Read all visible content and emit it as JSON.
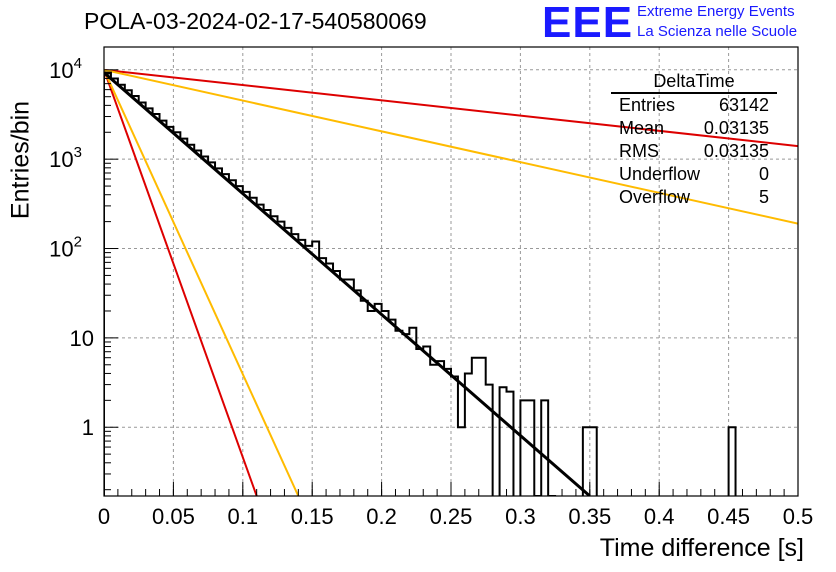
{
  "title": "POLA-03-2024-02-17-540580069",
  "logo": {
    "mark": "EEE",
    "line1": "Extreme Energy Events",
    "line2": "La Scienza nelle Scuole",
    "color": "#1a1aff"
  },
  "stats_box": {
    "title": "DeltaTime",
    "rows": [
      {
        "label": "Entries",
        "value": "63142"
      },
      {
        "label": "Mean",
        "value": "0.03135"
      },
      {
        "label": "RMS",
        "value": "0.03135"
      },
      {
        "label": "Underflow",
        "value": "0"
      },
      {
        "label": "Overflow",
        "value": "5"
      }
    ]
  },
  "chart_data": {
    "type": "histogram",
    "title": "POLA-03-2024-02-17-540580069",
    "xlabel": "Time difference [s]",
    "ylabel": "Entries/bin",
    "xlim": [
      0,
      0.5
    ],
    "ylim": [
      0.17,
      18000
    ],
    "ylog": true,
    "grid": true,
    "x_ticks": [
      "0",
      "0.05",
      "0.1",
      "0.15",
      "0.2",
      "0.25",
      "0.3",
      "0.35",
      "0.4",
      "0.45",
      "0.5"
    ],
    "y_ticks": [
      {
        "value": 1,
        "label": "1"
      },
      {
        "value": 10,
        "label": "10"
      },
      {
        "value": 100,
        "label": "10",
        "exp": "2"
      },
      {
        "value": 1000,
        "label": "10",
        "exp": "3"
      },
      {
        "value": 10000,
        "label": "10",
        "exp": "4"
      }
    ],
    "histogram": {
      "bin_width": 0.005,
      "x_start": 0,
      "color": "#000000",
      "counts": [
        9300,
        8000,
        6800,
        5900,
        5100,
        4300,
        3700,
        3200,
        2700,
        2300,
        2000,
        1700,
        1450,
        1250,
        1070,
        920,
        790,
        680,
        580,
        500,
        430,
        370,
        310,
        270,
        230,
        200,
        170,
        145,
        125,
        107,
        120,
        78,
        68,
        56,
        45,
        45,
        34,
        26,
        20,
        24,
        20,
        16,
        12,
        11,
        13,
        7.5,
        8,
        5,
        5.5,
        4.5,
        3.7,
        1.0,
        4.0,
        6.0,
        6.0,
        3.0,
        0,
        2.8,
        2.5,
        0,
        2.0,
        2.0,
        0.1,
        2.0,
        0.1,
        0,
        0,
        0,
        0,
        1.0,
        1.0,
        0,
        0,
        0,
        0,
        0,
        0,
        0,
        0,
        0,
        0,
        0,
        0,
        0,
        0,
        0,
        0,
        0,
        0,
        0,
        1.0,
        0,
        0,
        0,
        0,
        0,
        0,
        0,
        0,
        0
      ]
    },
    "fit_line": {
      "x0": 0,
      "y0": 9300,
      "x1": 0.35,
      "y1": 0.17,
      "color": "#000000"
    },
    "reference_lines": [
      {
        "x0": 0,
        "y0": 10000,
        "x1": 0.11,
        "y1": 0.17,
        "color": "#dd0000"
      },
      {
        "x0": 0,
        "y0": 10000,
        "x1": 0.14,
        "y1": 0.17,
        "color": "#ffbb00"
      },
      {
        "x0": 0,
        "y0": 10000,
        "x1": 0.5,
        "y1": 1400,
        "color": "#dd0000"
      },
      {
        "x0": 0,
        "y0": 10000,
        "x1": 0.5,
        "y1": 190,
        "color": "#ffbb00"
      }
    ]
  }
}
